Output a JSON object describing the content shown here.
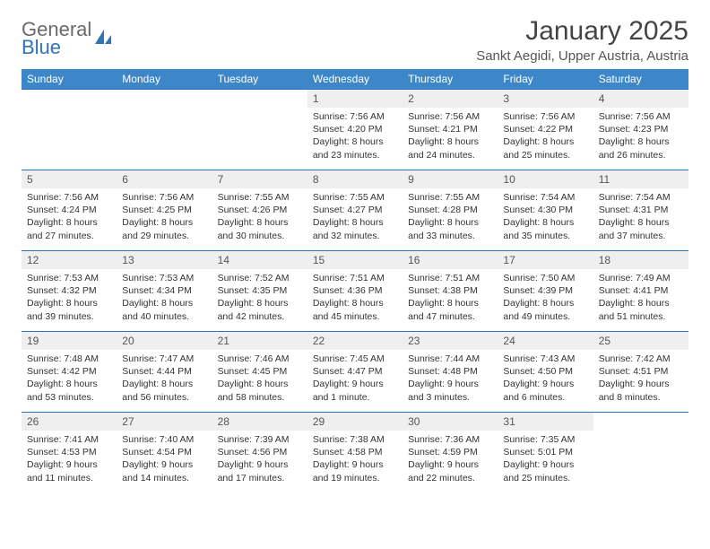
{
  "logo": {
    "text_top": "General",
    "text_bottom": "Blue"
  },
  "title": "January 2025",
  "location": "Sankt Aegidi, Upper Austria, Austria",
  "colors": {
    "header_bg": "#3d87c9",
    "header_text": "#ffffff",
    "daynum_bg": "#efefef",
    "border": "#2d74b8",
    "logo_gray": "#6a6a6a",
    "logo_blue": "#2d74b8"
  },
  "weekdays": [
    "Sunday",
    "Monday",
    "Tuesday",
    "Wednesday",
    "Thursday",
    "Friday",
    "Saturday"
  ],
  "weeks": [
    [
      {
        "empty": true
      },
      {
        "empty": true
      },
      {
        "empty": true
      },
      {
        "day": "1",
        "sunrise": "7:56 AM",
        "sunset": "4:20 PM",
        "dl_h": "8",
        "dl_m": "23"
      },
      {
        "day": "2",
        "sunrise": "7:56 AM",
        "sunset": "4:21 PM",
        "dl_h": "8",
        "dl_m": "24"
      },
      {
        "day": "3",
        "sunrise": "7:56 AM",
        "sunset": "4:22 PM",
        "dl_h": "8",
        "dl_m": "25"
      },
      {
        "day": "4",
        "sunrise": "7:56 AM",
        "sunset": "4:23 PM",
        "dl_h": "8",
        "dl_m": "26"
      }
    ],
    [
      {
        "day": "5",
        "sunrise": "7:56 AM",
        "sunset": "4:24 PM",
        "dl_h": "8",
        "dl_m": "27"
      },
      {
        "day": "6",
        "sunrise": "7:56 AM",
        "sunset": "4:25 PM",
        "dl_h": "8",
        "dl_m": "29"
      },
      {
        "day": "7",
        "sunrise": "7:55 AM",
        "sunset": "4:26 PM",
        "dl_h": "8",
        "dl_m": "30"
      },
      {
        "day": "8",
        "sunrise": "7:55 AM",
        "sunset": "4:27 PM",
        "dl_h": "8",
        "dl_m": "32"
      },
      {
        "day": "9",
        "sunrise": "7:55 AM",
        "sunset": "4:28 PM",
        "dl_h": "8",
        "dl_m": "33"
      },
      {
        "day": "10",
        "sunrise": "7:54 AM",
        "sunset": "4:30 PM",
        "dl_h": "8",
        "dl_m": "35"
      },
      {
        "day": "11",
        "sunrise": "7:54 AM",
        "sunset": "4:31 PM",
        "dl_h": "8",
        "dl_m": "37"
      }
    ],
    [
      {
        "day": "12",
        "sunrise": "7:53 AM",
        "sunset": "4:32 PM",
        "dl_h": "8",
        "dl_m": "39"
      },
      {
        "day": "13",
        "sunrise": "7:53 AM",
        "sunset": "4:34 PM",
        "dl_h": "8",
        "dl_m": "40"
      },
      {
        "day": "14",
        "sunrise": "7:52 AM",
        "sunset": "4:35 PM",
        "dl_h": "8",
        "dl_m": "42"
      },
      {
        "day": "15",
        "sunrise": "7:51 AM",
        "sunset": "4:36 PM",
        "dl_h": "8",
        "dl_m": "45"
      },
      {
        "day": "16",
        "sunrise": "7:51 AM",
        "sunset": "4:38 PM",
        "dl_h": "8",
        "dl_m": "47"
      },
      {
        "day": "17",
        "sunrise": "7:50 AM",
        "sunset": "4:39 PM",
        "dl_h": "8",
        "dl_m": "49"
      },
      {
        "day": "18",
        "sunrise": "7:49 AM",
        "sunset": "4:41 PM",
        "dl_h": "8",
        "dl_m": "51"
      }
    ],
    [
      {
        "day": "19",
        "sunrise": "7:48 AM",
        "sunset": "4:42 PM",
        "dl_h": "8",
        "dl_m": "53"
      },
      {
        "day": "20",
        "sunrise": "7:47 AM",
        "sunset": "4:44 PM",
        "dl_h": "8",
        "dl_m": "56"
      },
      {
        "day": "21",
        "sunrise": "7:46 AM",
        "sunset": "4:45 PM",
        "dl_h": "8",
        "dl_m": "58"
      },
      {
        "day": "22",
        "sunrise": "7:45 AM",
        "sunset": "4:47 PM",
        "dl_h": "9",
        "dl_m": "1"
      },
      {
        "day": "23",
        "sunrise": "7:44 AM",
        "sunset": "4:48 PM",
        "dl_h": "9",
        "dl_m": "3"
      },
      {
        "day": "24",
        "sunrise": "7:43 AM",
        "sunset": "4:50 PM",
        "dl_h": "9",
        "dl_m": "6"
      },
      {
        "day": "25",
        "sunrise": "7:42 AM",
        "sunset": "4:51 PM",
        "dl_h": "9",
        "dl_m": "8"
      }
    ],
    [
      {
        "day": "26",
        "sunrise": "7:41 AM",
        "sunset": "4:53 PM",
        "dl_h": "9",
        "dl_m": "11"
      },
      {
        "day": "27",
        "sunrise": "7:40 AM",
        "sunset": "4:54 PM",
        "dl_h": "9",
        "dl_m": "14"
      },
      {
        "day": "28",
        "sunrise": "7:39 AM",
        "sunset": "4:56 PM",
        "dl_h": "9",
        "dl_m": "17"
      },
      {
        "day": "29",
        "sunrise": "7:38 AM",
        "sunset": "4:58 PM",
        "dl_h": "9",
        "dl_m": "19"
      },
      {
        "day": "30",
        "sunrise": "7:36 AM",
        "sunset": "4:59 PM",
        "dl_h": "9",
        "dl_m": "22"
      },
      {
        "day": "31",
        "sunrise": "7:35 AM",
        "sunset": "5:01 PM",
        "dl_h": "9",
        "dl_m": "25"
      },
      {
        "empty": true
      }
    ]
  ],
  "labels": {
    "sunrise": "Sunrise: ",
    "sunset": "Sunset: ",
    "daylight": "Daylight: ",
    "hours": " hours",
    "and": "and ",
    "minutes": " minutes."
  }
}
